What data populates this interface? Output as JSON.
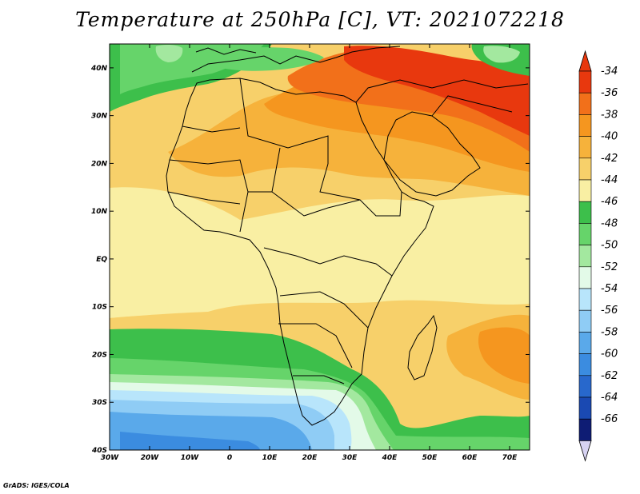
{
  "title": "Temperature at 250hPa [C], VT: 2021072218",
  "credit": "GrADS: IGES/COLA",
  "map": {
    "variable": "Temperature",
    "level": "250hPa",
    "units": "C",
    "valid_time": "2021072218",
    "lon_range": [
      -30,
      75
    ],
    "lat_range": [
      -40,
      45
    ],
    "lat_ticks": [
      {
        "value": 40,
        "label": "40N"
      },
      {
        "value": 30,
        "label": "30N"
      },
      {
        "value": 20,
        "label": "20N"
      },
      {
        "value": 10,
        "label": "10N"
      },
      {
        "value": 0,
        "label": "EQ"
      },
      {
        "value": -10,
        "label": "10S"
      },
      {
        "value": -20,
        "label": "20S"
      },
      {
        "value": -30,
        "label": "30S"
      },
      {
        "value": -40,
        "label": "40S"
      }
    ],
    "lon_ticks": [
      {
        "value": -30,
        "label": "30W"
      },
      {
        "value": -20,
        "label": "20W"
      },
      {
        "value": -10,
        "label": "10W"
      },
      {
        "value": 0,
        "label": "0"
      },
      {
        "value": 10,
        "label": "10E"
      },
      {
        "value": 20,
        "label": "20E"
      },
      {
        "value": 30,
        "label": "30E"
      },
      {
        "value": 40,
        "label": "40E"
      },
      {
        "value": 50,
        "label": "50E"
      },
      {
        "value": 60,
        "label": "60E"
      },
      {
        "value": 70,
        "label": "70E"
      }
    ]
  },
  "colorbar": {
    "labels": [
      "-34",
      "-36",
      "-38",
      "-40",
      "-42",
      "-44",
      "-46",
      "-48",
      "-50",
      "-52",
      "-54",
      "-56",
      "-58",
      "-60",
      "-62",
      "-64",
      "-66"
    ],
    "colors": [
      "#e8380e",
      "#f2701a",
      "#f5961f",
      "#f6b23b",
      "#f7d06a",
      "#f9efa3",
      "#3dbf4b",
      "#66d46a",
      "#a3e89f",
      "#e3fae8",
      "#b8e5fb",
      "#8fccf5",
      "#5aa9ea",
      "#3b8ce0",
      "#2868cc",
      "#1a49b2",
      "#0e1c74"
    ],
    "top_color": "#e8380e",
    "bottom_color": "#d7d3f2"
  }
}
